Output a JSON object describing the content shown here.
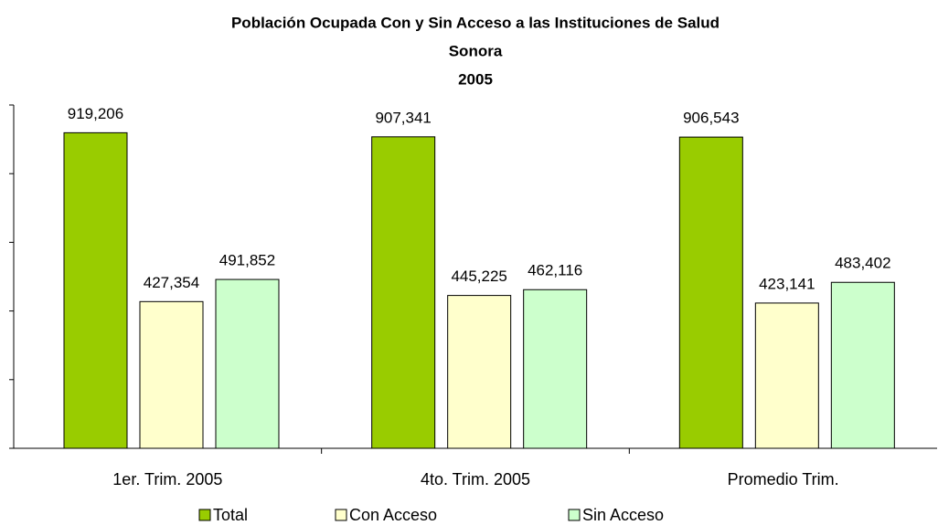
{
  "chart_data": {
    "type": "bar",
    "title": [
      "Población Ocupada Con y Sin Acceso a las Instituciones de Salud",
      "Sonora",
      "2005"
    ],
    "categories": [
      "1er. Trim. 2005",
      "4to. Trim. 2005",
      "Promedio Trim."
    ],
    "series": [
      {
        "name": "Total",
        "color": "#99cc00",
        "values": [
          919206,
          907341,
          906543
        ],
        "value_labels": [
          "919,206",
          "907,341",
          "906,543"
        ]
      },
      {
        "name": "Con Acceso",
        "color": "#ffffcc",
        "values": [
          427354,
          445225,
          423141
        ],
        "value_labels": [
          "427,354",
          "445,225",
          "423,141"
        ]
      },
      {
        "name": "Sin Acceso",
        "color": "#ccffcc",
        "values": [
          491852,
          462116,
          483402
        ],
        "value_labels": [
          "491,852",
          "462,116",
          "483,402"
        ]
      }
    ],
    "ylim": [
      0,
      1000000
    ],
    "yticks": [
      0,
      200000,
      400000,
      600000,
      800000,
      1000000
    ],
    "grid": false,
    "legend": "bottom"
  }
}
